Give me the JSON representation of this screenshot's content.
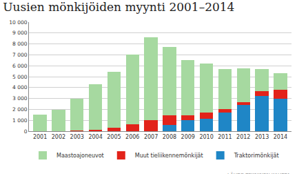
{
  "chart_data": {
    "type": "bar",
    "title": "Uusien mönkijöiden myynti 2001–2014",
    "stacked": true,
    "grid": true,
    "legend": "bottom",
    "categories": [
      "2001",
      "2002",
      "2003",
      "2004",
      "2005",
      "2006",
      "2007",
      "2008",
      "2009",
      "2010",
      "2011",
      "2012",
      "2013",
      "2014"
    ],
    "series": [
      {
        "name": "Traktorimönkijät",
        "color": "#1f86c6",
        "values": [
          0,
          0,
          0,
          0,
          0,
          0,
          0,
          550,
          1000,
          1150,
          1700,
          2400,
          3200,
          3000
        ]
      },
      {
        "name": "Muut tieliikennemönkijät",
        "color": "#e2231a",
        "values": [
          0,
          0,
          50,
          100,
          300,
          650,
          1000,
          900,
          450,
          550,
          350,
          250,
          500,
          800
        ]
      },
      {
        "name": "Maastoajoneuvot",
        "color": "#a6d9a0",
        "values": [
          1500,
          1950,
          2900,
          4200,
          5150,
          6350,
          7600,
          6300,
          5100,
          4500,
          3650,
          3100,
          2000,
          1500
        ]
      }
    ],
    "ylim": [
      0,
      10000
    ],
    "yticks": [
      0,
      {
        "value": 1000,
        "label": "1 000"
      },
      {
        "value": 2000,
        "label": "2 000"
      },
      {
        "value": 3000,
        "label": "3 000"
      },
      {
        "value": 4000,
        "label": "4 000"
      },
      {
        "value": 5000,
        "label": "5 000"
      },
      {
        "value": 6000,
        "label": "6 000"
      },
      {
        "value": 7000,
        "label": "7 000"
      },
      {
        "value": 8000,
        "label": "8 000"
      },
      {
        "value": 9000,
        "label": "9 000"
      },
      {
        "value": 10000,
        "label": "10 000"
      }
    ],
    "annotations": [
      "LÄHDE TEKNINEN KAUPPA"
    ]
  }
}
